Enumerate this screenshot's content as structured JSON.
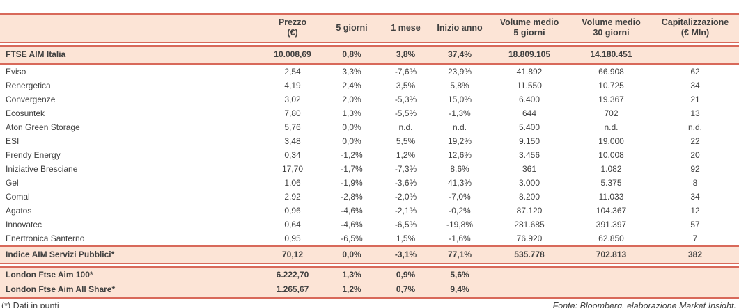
{
  "table": {
    "columns": [
      {
        "key": "name",
        "label": ""
      },
      {
        "key": "prezzo",
        "label": "Prezzo\n(€)"
      },
      {
        "key": "5-giorni",
        "label": "5 giorni"
      },
      {
        "key": "1-mese",
        "label": "1 mese"
      },
      {
        "key": "inizio-anno",
        "label": "Inizio anno"
      },
      {
        "key": "volume-medio-5-giorni",
        "label": "Volume medio\n5 giorni"
      },
      {
        "key": "volume-medio-30-giorni",
        "label": "Volume medio\n30 giorni"
      },
      {
        "key": "capitalizzazione",
        "label": "Capitalizzazione\n(€ Mln)"
      }
    ],
    "groups": [
      {
        "id": "ftse",
        "rows": [
          {
            "name": "FTSE AIM Italia",
            "values": [
              "10.008,69",
              "0,8%",
              "3,8%",
              "37,4%",
              "18.809.105",
              "14.180.451",
              ""
            ]
          }
        ]
      },
      {
        "id": "stocks",
        "rows": [
          {
            "name": "Eviso",
            "values": [
              "2,54",
              "3,3%",
              "-7,6%",
              "23,9%",
              "41.892",
              "66.908",
              "62"
            ]
          },
          {
            "name": "Renergetica",
            "values": [
              "4,19",
              "2,4%",
              "3,5%",
              "5,8%",
              "11.550",
              "10.725",
              "34"
            ]
          },
          {
            "name": "Convergenze",
            "values": [
              "3,02",
              "2,0%",
              "-5,3%",
              "15,0%",
              "6.400",
              "19.367",
              "21"
            ]
          },
          {
            "name": "Ecosuntek",
            "values": [
              "7,80",
              "1,3%",
              "-5,5%",
              "-1,3%",
              "644",
              "702",
              "13"
            ]
          },
          {
            "name": "Aton Green Storage",
            "values": [
              "5,76",
              "0,0%",
              "n.d.",
              "n.d.",
              "5.400",
              "n.d.",
              "n.d."
            ]
          },
          {
            "name": "ESI",
            "values": [
              "3,48",
              "0,0%",
              "5,5%",
              "19,2%",
              "9.150",
              "19.000",
              "22"
            ]
          },
          {
            "name": "Frendy Energy",
            "values": [
              "0,34",
              "-1,2%",
              "1,2%",
              "12,6%",
              "3.456",
              "10.008",
              "20"
            ]
          },
          {
            "name": "Iniziative Bresciane",
            "values": [
              "17,70",
              "-1,7%",
              "-7,3%",
              "8,6%",
              "361",
              "1.082",
              "92"
            ]
          },
          {
            "name": "Gel",
            "values": [
              "1,06",
              "-1,9%",
              "-3,6%",
              "41,3%",
              "3.000",
              "5.375",
              "8"
            ]
          },
          {
            "name": "Comal",
            "values": [
              "2,92",
              "-2,8%",
              "-2,0%",
              "-7,0%",
              "8.200",
              "11.033",
              "34"
            ]
          },
          {
            "name": "Agatos",
            "values": [
              "0,96",
              "-4,6%",
              "-2,1%",
              "-0,2%",
              "87.120",
              "104.367",
              "12"
            ]
          },
          {
            "name": "Innovatec",
            "values": [
              "0,64",
              "-4,6%",
              "-6,5%",
              "-19,8%",
              "281.685",
              "391.397",
              "57"
            ]
          },
          {
            "name": "Enertronica Santerno",
            "values": [
              "0,95",
              "-6,5%",
              "1,5%",
              "-1,6%",
              "76.920",
              "62.850",
              "7"
            ]
          }
        ]
      },
      {
        "id": "indice",
        "rows": [
          {
            "name": "Indice AIM Servizi Pubblici*",
            "values": [
              "70,12",
              "0,0%",
              "-3,1%",
              "77,1%",
              "535.778",
              "702.813",
              "382"
            ]
          }
        ]
      },
      {
        "id": "london",
        "rows": [
          {
            "name": "London Ftse Aim 100*",
            "values": [
              "6.222,70",
              "1,3%",
              "0,9%",
              "5,6%",
              "",
              "",
              ""
            ]
          },
          {
            "name": "London Ftse Aim All Share*",
            "values": [
              "1.265,67",
              "1,2%",
              "0,7%",
              "9,4%",
              "",
              "",
              ""
            ]
          }
        ]
      }
    ]
  },
  "footer": {
    "note": "(*) Dati in punti",
    "source": "Fonte: Bloomberg, elaborazione Market Insight."
  },
  "colors": {
    "accent": "#d8695a",
    "row_background": "#fce4d6",
    "text": "#3f3f3f"
  }
}
